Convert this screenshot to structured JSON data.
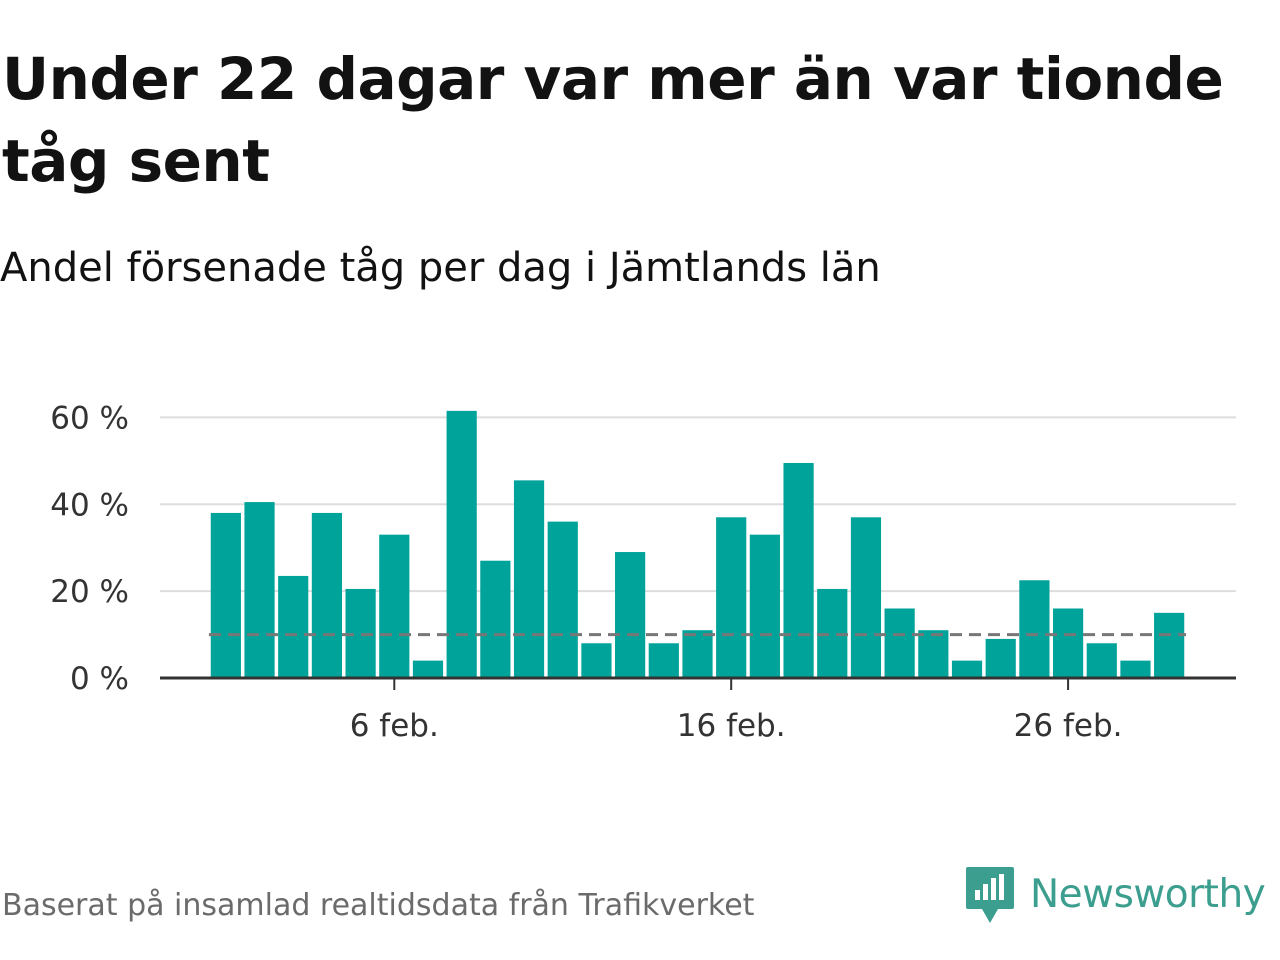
{
  "title": "Under 22 dagar var mer än var tionde tåg sent",
  "subtitle": "Andel försenade tåg per dag i Jämtlands län",
  "source": "Baserat på insamlad realtidsdata från Trafikverket",
  "brand": {
    "name": "Newsworthy",
    "logo_icon": "newsworthy-bar-chart-logo-icon",
    "color": "#3b9e8e"
  },
  "chart_data": {
    "type": "bar",
    "x": [
      "2024-02-01",
      "2024-02-02",
      "2024-02-03",
      "2024-02-04",
      "2024-02-05",
      "2024-02-06",
      "2024-02-07",
      "2024-02-08",
      "2024-02-09",
      "2024-02-10",
      "2024-02-11",
      "2024-02-12",
      "2024-02-13",
      "2024-02-14",
      "2024-02-15",
      "2024-02-16",
      "2024-02-17",
      "2024-02-18",
      "2024-02-19",
      "2024-02-20",
      "2024-02-21",
      "2024-02-22",
      "2024-02-23",
      "2024-02-24",
      "2024-02-25",
      "2024-02-26",
      "2024-02-27",
      "2024-02-28",
      "2024-02-29"
    ],
    "values": [
      38,
      40.5,
      23.5,
      38,
      20.5,
      33,
      4,
      61.5,
      27,
      45.5,
      36,
      8,
      29,
      8,
      11,
      37,
      33,
      49.5,
      20.5,
      37,
      16,
      11,
      4,
      9,
      22.5,
      16,
      8,
      4,
      15
    ],
    "xticks": [
      {
        "date": "2024-02-06",
        "label": "6 feb."
      },
      {
        "date": "2024-02-16",
        "label": "16 feb."
      },
      {
        "date": "2024-02-26",
        "label": "26 feb."
      }
    ],
    "yticks": [
      {
        "value": 0,
        "label": "0 %"
      },
      {
        "value": 20,
        "label": "20 %"
      },
      {
        "value": 40,
        "label": "40 %"
      },
      {
        "value": 60,
        "label": "60 %"
      }
    ],
    "ylim": [
      0,
      64
    ],
    "reference_line": {
      "value": 10,
      "style": "dashed",
      "color": "#777777"
    },
    "grid": true,
    "xlabel": "",
    "ylabel": "",
    "bar_color": "#00a39a",
    "axis_color": "#333333",
    "grid_color": "#dddddd"
  }
}
